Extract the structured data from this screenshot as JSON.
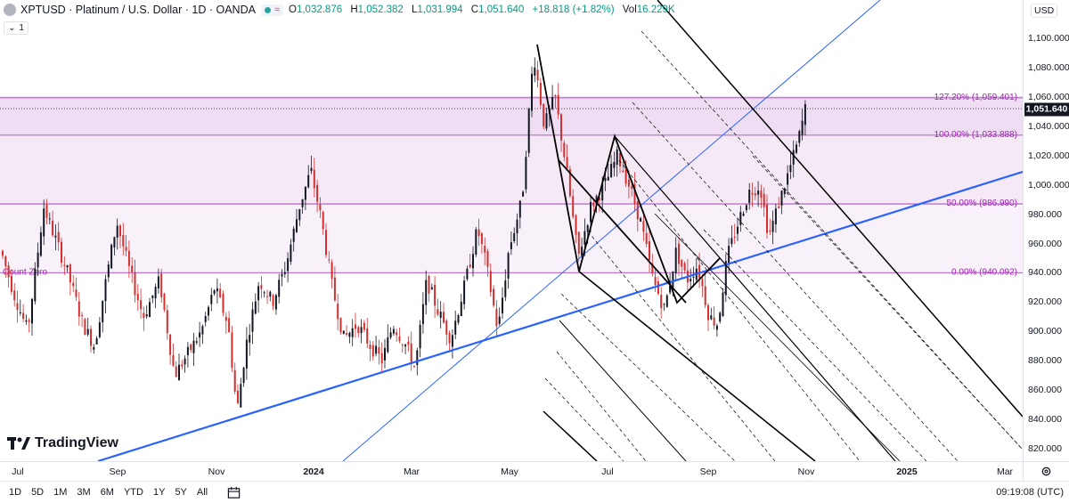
{
  "legend": {
    "title": "XPTUSD · Platinum / U.S. Dollar · 1D · OANDA",
    "open_key": "O",
    "open": "1,032.876",
    "high_key": "H",
    "high": "1,052.382",
    "low_key": "L",
    "low": "1,031.994",
    "close_key": "C",
    "close": "1,051.640",
    "change": "+18.818 (+1.82%)",
    "vol_key": "Vol",
    "vol": "16.229K",
    "icons": [
      "symbol-icon",
      "market-open-dot-icon",
      "wave-icon"
    ]
  },
  "interval_button": {
    "icon": "chevron-down-icon",
    "value": "1"
  },
  "price_axis": {
    "currency": "USD",
    "ticks": [
      "1,100.000",
      "1,080.000",
      "1,060.000",
      "1,040.000",
      "1,020.000",
      "1,000.000",
      "980.000",
      "960.000",
      "940.000",
      "920.000",
      "900.000",
      "880.000",
      "860.000",
      "840.000",
      "820.000"
    ],
    "last_price": "1,051.640"
  },
  "time_axis": {
    "ticks": [
      {
        "label": "Jul",
        "bold": false
      },
      {
        "label": "Sep",
        "bold": false
      },
      {
        "label": "Nov",
        "bold": false
      },
      {
        "label": "2024",
        "bold": true
      },
      {
        "label": "Mar",
        "bold": false
      },
      {
        "label": "May",
        "bold": false
      },
      {
        "label": "Jul",
        "bold": false
      },
      {
        "label": "Sep",
        "bold": false
      },
      {
        "label": "Nov",
        "bold": false
      },
      {
        "label": "2025",
        "bold": true
      },
      {
        "label": "Mar",
        "bold": false
      }
    ]
  },
  "fib_levels": [
    {
      "label": "127.20% (1,059.401)",
      "price": 1059.401
    },
    {
      "label": "100.00% (1,033.888)",
      "price": 1033.888
    },
    {
      "label": "50.00% (986.990)",
      "price": 986.99
    },
    {
      "label": "0.00% (940.092)",
      "price": 940.092
    }
  ],
  "count_zero_label": "Count Zero",
  "colors": {
    "fib_line": "#9c27b0",
    "fib_fill": "#f3e5f5",
    "up_candle": "#131722",
    "down_candle": "#d32f2f",
    "trendline": "#2962ff",
    "channel": "#000000"
  },
  "branding": {
    "name": "TradingView"
  },
  "bottom_toolbar": {
    "ranges": [
      "1D",
      "5D",
      "1M",
      "3M",
      "6M",
      "YTD",
      "1Y",
      "5Y",
      "All"
    ],
    "calendar_icon": "calendar-icon",
    "clock": "09:19:08 (UTC)"
  },
  "settings_icon": "gear-icon"
}
